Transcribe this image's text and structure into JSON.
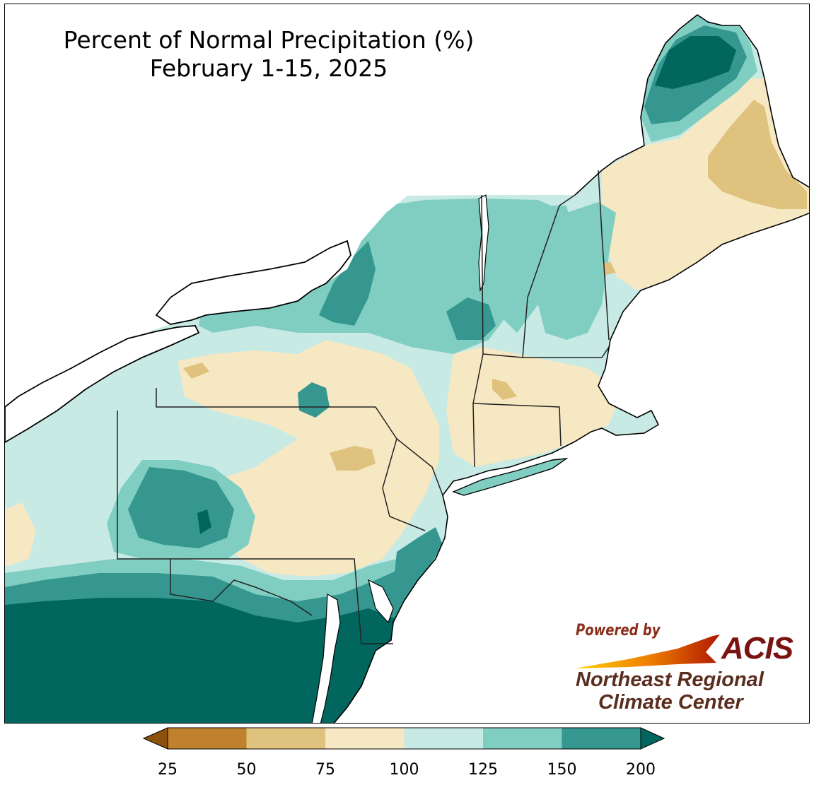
{
  "map": {
    "title_line1": "Percent of Normal Precipitation (%)",
    "title_line2": "February 1-15, 2025",
    "region": "Northeast United States",
    "colors": {
      "p25_50": "#bf812d",
      "p50_75": "#dfc27d",
      "p75_100": "#f6e8c3",
      "p100_125": "#c7eae5",
      "p125_150": "#80cdc1",
      "p150_200": "#35978f",
      "p200_plus": "#01665e",
      "water": "#ffffff",
      "outline": "#000000"
    }
  },
  "legend": {
    "tick_labels": [
      "25",
      "50",
      "75",
      "100",
      "125",
      "150",
      "200"
    ],
    "bins": [
      {
        "range": "<25",
        "color": "#8c510a"
      },
      {
        "range": "25-50",
        "color": "#bf812d"
      },
      {
        "range": "50-75",
        "color": "#dfc27d"
      },
      {
        "range": "75-100",
        "color": "#f6e8c3"
      },
      {
        "range": "100-125",
        "color": "#c7eae5"
      },
      {
        "range": "125-150",
        "color": "#80cdc1"
      },
      {
        "range": "150-200",
        "color": "#35978f"
      },
      {
        "range": ">200",
        "color": "#01665e"
      }
    ]
  },
  "logo": {
    "powered_by": "Powered by",
    "acis": "ACIS",
    "org_line1": "Northeast Regional",
    "org_line2": "Climate Center"
  }
}
